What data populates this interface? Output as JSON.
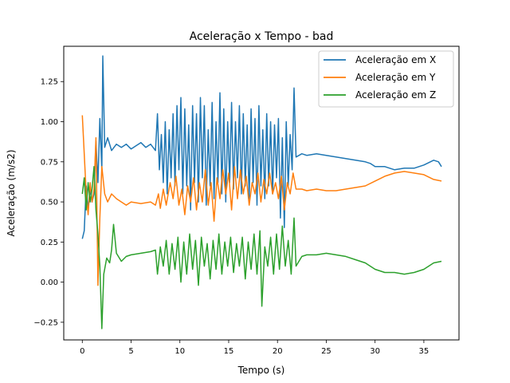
{
  "chart_data": {
    "type": "line",
    "title": "Aceleração x Tempo - bad",
    "xlabel": "Tempo (s)",
    "ylabel": "Aceleração (m/s2)",
    "xlim": [
      -1.9,
      38.6
    ],
    "ylim": [
      -0.36,
      1.47
    ],
    "xticks": [
      0,
      5,
      10,
      15,
      20,
      25,
      30,
      35
    ],
    "yticks": [
      -0.25,
      0.0,
      0.25,
      0.5,
      0.75,
      1.0,
      1.25
    ],
    "ytick_labels": [
      "−0.25",
      "0.00",
      "0.25",
      "0.50",
      "0.75",
      "1.00",
      "1.25"
    ],
    "grid": false,
    "legend_position": "upper right",
    "series": [
      {
        "name": "Aceleração em X",
        "color": "#1f77b4",
        "points": [
          [
            0.0,
            0.27
          ],
          [
            0.2,
            0.32
          ],
          [
            0.4,
            0.6
          ],
          [
            0.6,
            0.45
          ],
          [
            0.8,
            0.58
          ],
          [
            1.0,
            0.5
          ],
          [
            1.2,
            0.55
          ],
          [
            1.4,
            0.88
          ],
          [
            1.6,
            0.62
          ],
          [
            1.8,
            1.02
          ],
          [
            2.0,
            0.7
          ],
          [
            2.1,
            1.41
          ],
          [
            2.3,
            0.84
          ],
          [
            2.6,
            0.9
          ],
          [
            3.0,
            0.82
          ],
          [
            3.5,
            0.86
          ],
          [
            4.0,
            0.84
          ],
          [
            4.5,
            0.86
          ],
          [
            5.0,
            0.83
          ],
          [
            5.5,
            0.85
          ],
          [
            6.0,
            0.87
          ],
          [
            6.5,
            0.84
          ],
          [
            7.0,
            0.86
          ],
          [
            7.5,
            0.82
          ],
          [
            7.7,
            1.05
          ],
          [
            7.9,
            0.7
          ],
          [
            8.1,
            0.92
          ],
          [
            8.3,
            0.62
          ],
          [
            8.5,
            1.0
          ],
          [
            8.7,
            0.55
          ],
          [
            8.9,
            0.95
          ],
          [
            9.1,
            0.65
          ],
          [
            9.3,
            1.05
          ],
          [
            9.5,
            0.6
          ],
          [
            9.7,
            1.1
          ],
          [
            9.9,
            0.7
          ],
          [
            10.1,
            1.15
          ],
          [
            10.3,
            0.55
          ],
          [
            10.5,
            1.08
          ],
          [
            10.7,
            0.6
          ],
          [
            10.9,
            0.98
          ],
          [
            11.1,
            0.45
          ],
          [
            11.3,
            1.1
          ],
          [
            11.5,
            0.62
          ],
          [
            11.7,
            1.05
          ],
          [
            11.9,
            0.5
          ],
          [
            12.1,
            1.15
          ],
          [
            12.3,
            0.65
          ],
          [
            12.5,
            1.1
          ],
          [
            12.7,
            0.48
          ],
          [
            12.9,
            0.95
          ],
          [
            13.1,
            0.6
          ],
          [
            13.3,
            1.12
          ],
          [
            13.5,
            0.52
          ],
          [
            13.7,
            1.0
          ],
          [
            13.9,
            0.62
          ],
          [
            14.1,
            1.18
          ],
          [
            14.3,
            0.55
          ],
          [
            14.5,
            1.08
          ],
          [
            14.7,
            0.5
          ],
          [
            14.9,
            1.0
          ],
          [
            15.1,
            0.62
          ],
          [
            15.3,
            1.12
          ],
          [
            15.5,
            0.58
          ],
          [
            15.7,
            1.0
          ],
          [
            15.9,
            0.65
          ],
          [
            16.1,
            1.1
          ],
          [
            16.3,
            0.55
          ],
          [
            16.5,
            1.05
          ],
          [
            16.7,
            0.6
          ],
          [
            16.9,
            0.98
          ],
          [
            17.1,
            0.52
          ],
          [
            17.3,
            1.08
          ],
          [
            17.5,
            0.62
          ],
          [
            17.7,
            1.02
          ],
          [
            17.9,
            0.48
          ],
          [
            18.1,
            1.1
          ],
          [
            18.3,
            0.6
          ],
          [
            18.5,
            0.95
          ],
          [
            18.7,
            0.52
          ],
          [
            18.9,
            1.05
          ],
          [
            19.1,
            0.6
          ],
          [
            19.3,
            1.0
          ],
          [
            19.5,
            0.55
          ],
          [
            19.7,
            0.98
          ],
          [
            19.9,
            0.65
          ],
          [
            20.1,
            1.02
          ],
          [
            20.3,
            0.4
          ],
          [
            20.5,
            0.9
          ],
          [
            20.7,
            0.34
          ],
          [
            20.9,
            1.0
          ],
          [
            21.1,
            0.6
          ],
          [
            21.3,
            0.92
          ],
          [
            21.5,
            0.7
          ],
          [
            21.7,
            1.21
          ],
          [
            21.9,
            0.78
          ],
          [
            22.5,
            0.8
          ],
          [
            23.0,
            0.79
          ],
          [
            24.0,
            0.8
          ],
          [
            25.0,
            0.79
          ],
          [
            26.0,
            0.78
          ],
          [
            27.0,
            0.77
          ],
          [
            28.0,
            0.76
          ],
          [
            29.0,
            0.75
          ],
          [
            29.5,
            0.74
          ],
          [
            30.0,
            0.72
          ],
          [
            31.0,
            0.72
          ],
          [
            32.0,
            0.7
          ],
          [
            33.0,
            0.71
          ],
          [
            34.0,
            0.71
          ],
          [
            35.0,
            0.73
          ],
          [
            36.0,
            0.76
          ],
          [
            36.5,
            0.75
          ],
          [
            36.8,
            0.72
          ]
        ]
      },
      {
        "name": "Aceleração em Y",
        "color": "#ff7f0e",
        "points": [
          [
            0.0,
            1.04
          ],
          [
            0.2,
            0.8
          ],
          [
            0.4,
            0.55
          ],
          [
            0.6,
            0.42
          ],
          [
            0.8,
            0.62
          ],
          [
            1.0,
            0.5
          ],
          [
            1.2,
            0.58
          ],
          [
            1.4,
            0.9
          ],
          [
            1.6,
            -0.02
          ],
          [
            1.8,
            0.4
          ],
          [
            2.0,
            0.72
          ],
          [
            2.3,
            0.55
          ],
          [
            2.6,
            0.5
          ],
          [
            3.0,
            0.55
          ],
          [
            3.5,
            0.52
          ],
          [
            4.0,
            0.5
          ],
          [
            4.5,
            0.48
          ],
          [
            5.0,
            0.5
          ],
          [
            6.0,
            0.49
          ],
          [
            7.0,
            0.5
          ],
          [
            7.5,
            0.48
          ],
          [
            7.8,
            0.55
          ],
          [
            8.0,
            0.46
          ],
          [
            8.3,
            0.58
          ],
          [
            8.6,
            0.48
          ],
          [
            9.0,
            0.62
          ],
          [
            9.3,
            0.52
          ],
          [
            9.6,
            0.66
          ],
          [
            9.9,
            0.48
          ],
          [
            10.2,
            0.58
          ],
          [
            10.5,
            0.42
          ],
          [
            10.8,
            0.6
          ],
          [
            11.1,
            0.5
          ],
          [
            11.4,
            0.65
          ],
          [
            11.7,
            0.45
          ],
          [
            12.0,
            0.62
          ],
          [
            12.3,
            0.5
          ],
          [
            12.6,
            0.7
          ],
          [
            12.9,
            0.48
          ],
          [
            13.2,
            0.62
          ],
          [
            13.5,
            0.38
          ],
          [
            13.8,
            0.65
          ],
          [
            14.1,
            0.52
          ],
          [
            14.4,
            0.7
          ],
          [
            14.7,
            0.55
          ],
          [
            15.0,
            0.68
          ],
          [
            15.3,
            0.45
          ],
          [
            15.6,
            0.72
          ],
          [
            15.9,
            0.52
          ],
          [
            16.2,
            0.7
          ],
          [
            16.5,
            0.55
          ],
          [
            16.8,
            0.66
          ],
          [
            17.1,
            0.48
          ],
          [
            17.4,
            0.62
          ],
          [
            17.7,
            0.55
          ],
          [
            18.0,
            0.68
          ],
          [
            18.3,
            0.5
          ],
          [
            18.6,
            0.64
          ],
          [
            18.9,
            0.55
          ],
          [
            19.2,
            0.68
          ],
          [
            19.5,
            0.55
          ],
          [
            19.8,
            0.62
          ],
          [
            20.1,
            0.52
          ],
          [
            20.4,
            0.66
          ],
          [
            20.7,
            0.45
          ],
          [
            21.0,
            0.62
          ],
          [
            21.3,
            0.55
          ],
          [
            21.6,
            0.68
          ],
          [
            21.9,
            0.58
          ],
          [
            22.5,
            0.58
          ],
          [
            23.0,
            0.57
          ],
          [
            24.0,
            0.58
          ],
          [
            25.0,
            0.57
          ],
          [
            26.0,
            0.57
          ],
          [
            27.0,
            0.58
          ],
          [
            28.0,
            0.59
          ],
          [
            29.0,
            0.6
          ],
          [
            30.0,
            0.63
          ],
          [
            31.0,
            0.66
          ],
          [
            32.0,
            0.68
          ],
          [
            33.0,
            0.69
          ],
          [
            34.0,
            0.68
          ],
          [
            35.0,
            0.67
          ],
          [
            36.0,
            0.64
          ],
          [
            36.8,
            0.63
          ]
        ]
      },
      {
        "name": "Aceleração em Z",
        "color": "#2ca02c",
        "points": [
          [
            0.0,
            0.55
          ],
          [
            0.2,
            0.65
          ],
          [
            0.4,
            0.45
          ],
          [
            0.6,
            0.62
          ],
          [
            0.8,
            0.5
          ],
          [
            1.0,
            0.58
          ],
          [
            1.2,
            0.72
          ],
          [
            1.4,
            0.45
          ],
          [
            1.6,
            0.3
          ],
          [
            1.8,
            0.1
          ],
          [
            2.0,
            -0.29
          ],
          [
            2.2,
            0.05
          ],
          [
            2.5,
            0.15
          ],
          [
            2.8,
            0.12
          ],
          [
            3.0,
            0.2
          ],
          [
            3.2,
            0.36
          ],
          [
            3.5,
            0.18
          ],
          [
            4.0,
            0.13
          ],
          [
            4.5,
            0.16
          ],
          [
            5.0,
            0.17
          ],
          [
            6.0,
            0.18
          ],
          [
            7.0,
            0.19
          ],
          [
            7.5,
            0.2
          ],
          [
            7.7,
            0.05
          ],
          [
            8.0,
            0.22
          ],
          [
            8.3,
            0.1
          ],
          [
            8.6,
            0.26
          ],
          [
            8.9,
            0.05
          ],
          [
            9.2,
            0.24
          ],
          [
            9.5,
            0.08
          ],
          [
            9.8,
            0.28
          ],
          [
            10.1,
            0.0
          ],
          [
            10.4,
            0.25
          ],
          [
            10.7,
            0.05
          ],
          [
            11.0,
            0.3
          ],
          [
            11.3,
            0.08
          ],
          [
            11.6,
            0.26
          ],
          [
            11.9,
            -0.02
          ],
          [
            12.2,
            0.28
          ],
          [
            12.5,
            0.1
          ],
          [
            12.8,
            0.24
          ],
          [
            13.1,
            0.02
          ],
          [
            13.4,
            0.26
          ],
          [
            13.7,
            0.08
          ],
          [
            14.0,
            0.3
          ],
          [
            14.3,
            0.05
          ],
          [
            14.6,
            0.25
          ],
          [
            14.9,
            0.1
          ],
          [
            15.2,
            0.28
          ],
          [
            15.5,
            0.06
          ],
          [
            15.8,
            0.24
          ],
          [
            16.1,
            0.1
          ],
          [
            16.4,
            0.28
          ],
          [
            16.7,
            0.02
          ],
          [
            17.0,
            0.25
          ],
          [
            17.3,
            0.08
          ],
          [
            17.6,
            0.3
          ],
          [
            17.9,
            0.05
          ],
          [
            18.2,
            0.32
          ],
          [
            18.4,
            -0.15
          ],
          [
            18.7,
            0.22
          ],
          [
            19.0,
            0.1
          ],
          [
            19.3,
            0.28
          ],
          [
            19.6,
            0.05
          ],
          [
            19.9,
            0.3
          ],
          [
            20.2,
            0.08
          ],
          [
            20.5,
            0.35
          ],
          [
            20.8,
            0.1
          ],
          [
            21.1,
            0.26
          ],
          [
            21.4,
            0.05
          ],
          [
            21.7,
            0.4
          ],
          [
            21.9,
            0.1
          ],
          [
            22.5,
            0.16
          ],
          [
            23.0,
            0.17
          ],
          [
            24.0,
            0.17
          ],
          [
            25.0,
            0.18
          ],
          [
            26.0,
            0.17
          ],
          [
            27.0,
            0.16
          ],
          [
            28.0,
            0.14
          ],
          [
            29.0,
            0.12
          ],
          [
            30.0,
            0.08
          ],
          [
            31.0,
            0.06
          ],
          [
            32.0,
            0.06
          ],
          [
            33.0,
            0.05
          ],
          [
            34.0,
            0.06
          ],
          [
            35.0,
            0.08
          ],
          [
            36.0,
            0.12
          ],
          [
            36.8,
            0.13
          ]
        ]
      }
    ]
  }
}
